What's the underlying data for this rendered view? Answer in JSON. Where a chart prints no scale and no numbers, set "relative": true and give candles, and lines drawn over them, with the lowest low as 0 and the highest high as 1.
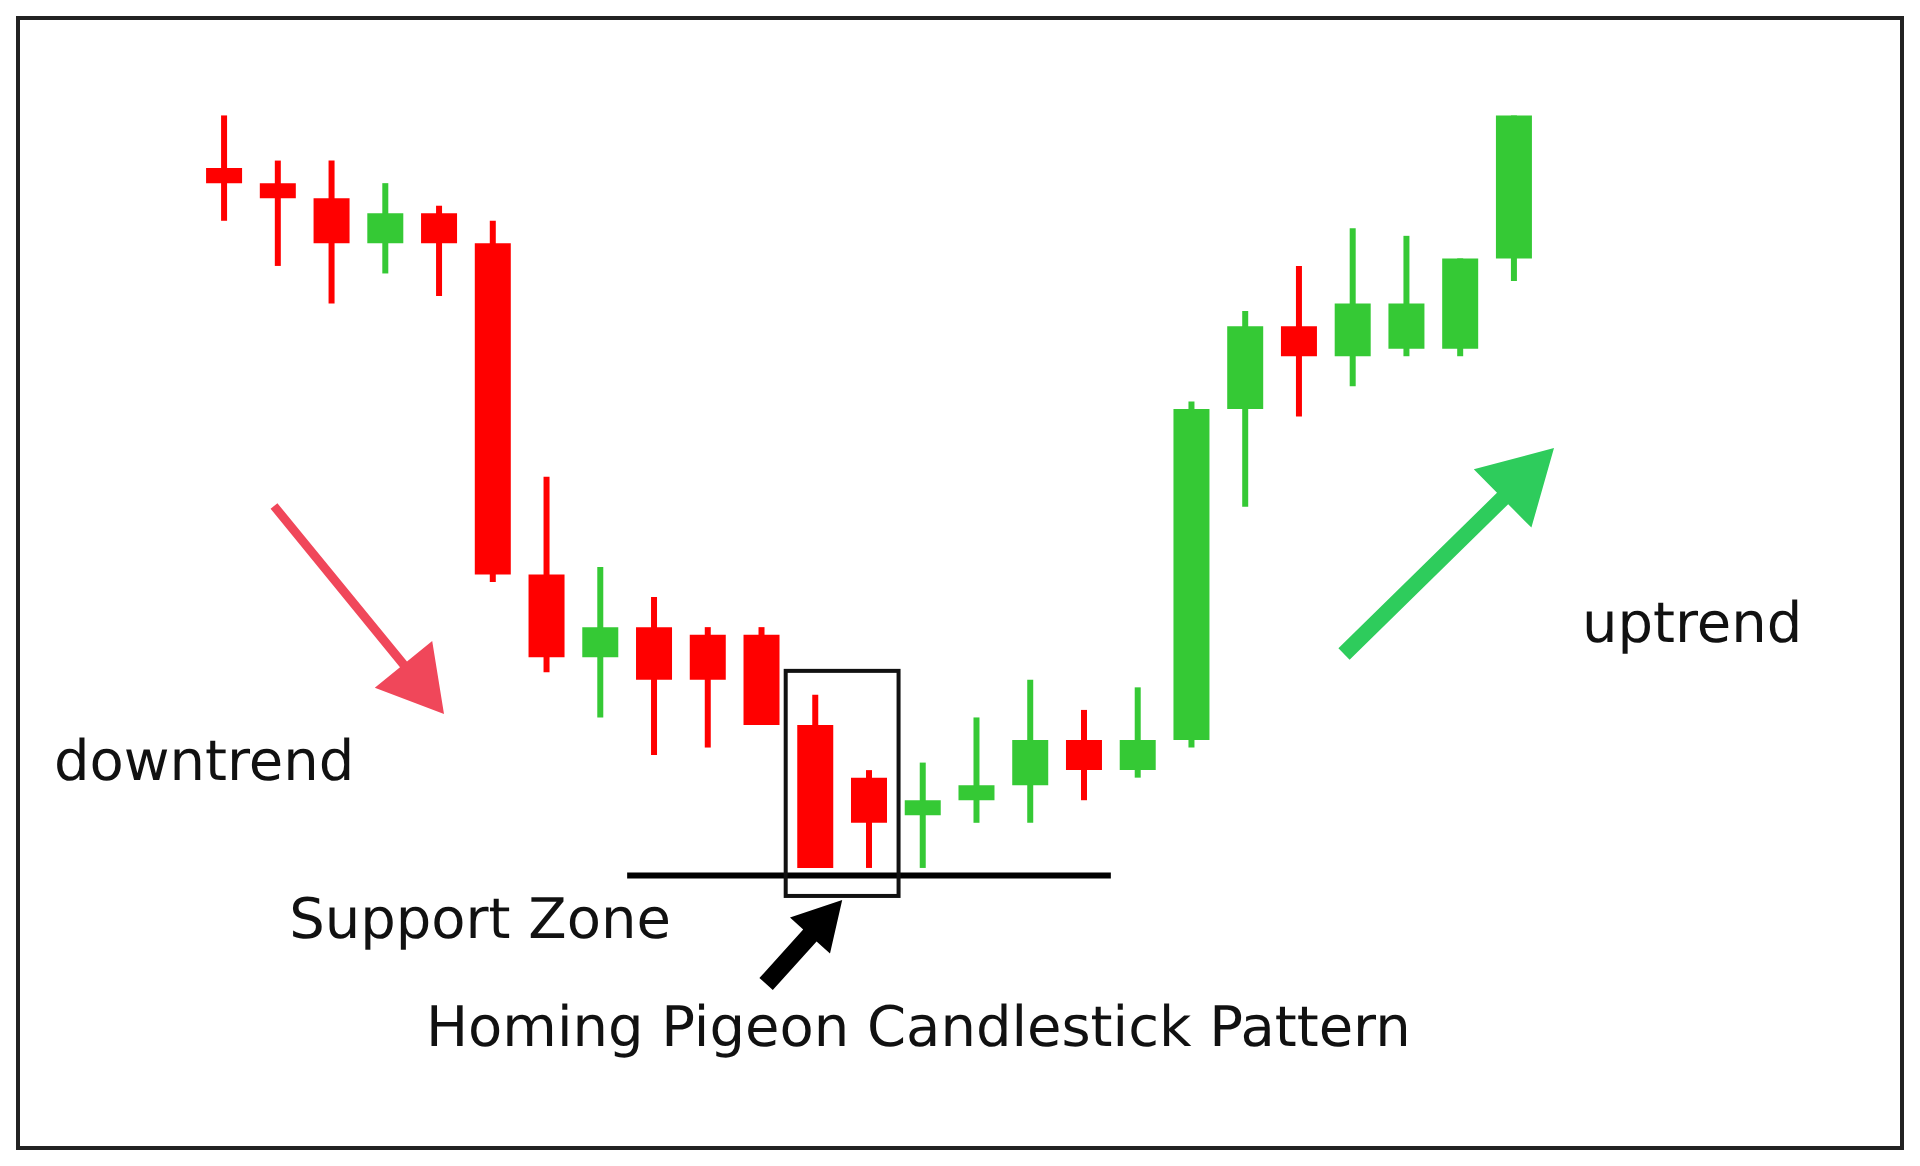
{
  "chart_data": {
    "type": "candlestick",
    "relative": true,
    "categories": [
      null,
      null,
      null,
      null,
      null,
      null,
      null,
      null,
      null,
      null,
      null,
      null,
      null,
      null,
      null,
      null,
      null,
      null,
      null,
      null,
      null,
      null,
      null,
      null,
      null
    ],
    "ohlc": [
      [
        0.93,
        1.0,
        0.86,
        0.91
      ],
      [
        0.91,
        0.94,
        0.8,
        0.89
      ],
      [
        0.89,
        0.94,
        0.75,
        0.83
      ],
      [
        0.83,
        0.91,
        0.79,
        0.87
      ],
      [
        0.87,
        0.88,
        0.76,
        0.83
      ],
      [
        0.83,
        0.86,
        0.38,
        0.39
      ],
      [
        0.39,
        0.52,
        0.26,
        0.28
      ],
      [
        0.28,
        0.4,
        0.2,
        0.32
      ],
      [
        0.32,
        0.36,
        0.15,
        0.25
      ],
      [
        0.31,
        0.32,
        0.16,
        0.25
      ],
      [
        0.31,
        0.32,
        0.19,
        0.19
      ],
      [
        0.19,
        0.23,
        0.0,
        0.0
      ],
      [
        0.12,
        0.13,
        0.0,
        0.06
      ],
      [
        0.07,
        0.14,
        0.0,
        0.09
      ],
      [
        0.09,
        0.2,
        0.06,
        0.11
      ],
      [
        0.11,
        0.25,
        0.06,
        0.17
      ],
      [
        0.17,
        0.21,
        0.09,
        0.13
      ],
      [
        0.13,
        0.24,
        0.12,
        0.17
      ],
      [
        0.17,
        0.62,
        0.16,
        0.61
      ],
      [
        0.61,
        0.74,
        0.48,
        0.72
      ],
      [
        0.72,
        0.8,
        0.6,
        0.68
      ],
      [
        0.68,
        0.85,
        0.64,
        0.75
      ],
      [
        0.69,
        0.84,
        0.68,
        0.75
      ],
      [
        0.69,
        0.81,
        0.68,
        0.81
      ],
      [
        0.81,
        1.0,
        0.78,
        1.0
      ]
    ],
    "colors": [
      "#ff0000",
      "#ff0000",
      "#ff0000",
      "#35c935",
      "#ff0000",
      "#ff0000",
      "#ff0000",
      "#35c935",
      "#ff0000",
      "#ff0000",
      "#ff0000",
      "#ff0000",
      "#ff0000",
      "#35c935",
      "#35c935",
      "#35c935",
      "#ff0000",
      "#35c935",
      "#35c935",
      "#35c935",
      "#ff0000",
      "#35c935",
      "#35c935",
      "#35c935",
      "#35c935"
    ],
    "ref_lines": [
      {
        "axis": "y",
        "value": -0.01,
        "label": "Support Zone",
        "color": "#000000"
      }
    ],
    "annotations": [
      "downtrend",
      "uptrend",
      "Homing Pigeon Candlestick Pattern"
    ]
  }
}
